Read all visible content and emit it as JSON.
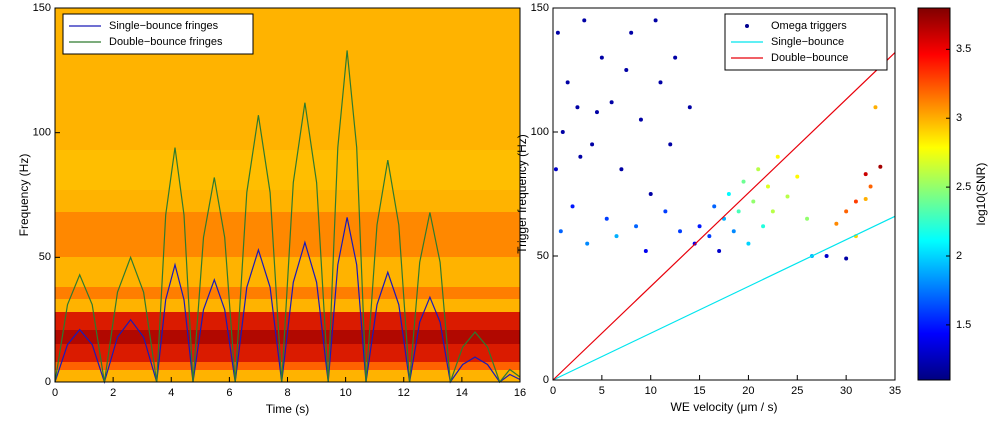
{
  "chart_data": [
    {
      "type": "line",
      "xlabel": "Time (s)",
      "ylabel": "Frequency (Hz)",
      "xlim": [
        0,
        16
      ],
      "xticks": [
        0,
        2,
        4,
        6,
        8,
        10,
        12,
        14,
        16
      ],
      "ylim": [
        0,
        150
      ],
      "yticks": [
        0,
        50,
        100,
        150
      ],
      "legend": "upper left",
      "x": [
        0,
        0.43,
        0.85,
        1.28,
        1.7,
        2.15,
        2.6,
        3.05,
        3.5,
        3.81,
        4.13,
        4.44,
        4.75,
        5.11,
        5.48,
        5.84,
        6.2,
        6.6,
        7.0,
        7.4,
        7.8,
        8.2,
        8.6,
        9.0,
        9.4,
        9.73,
        10.05,
        10.38,
        10.7,
        11.08,
        11.45,
        11.83,
        12.2,
        12.55,
        12.9,
        13.25,
        13.6,
        14.03,
        14.45,
        14.88,
        15.3,
        15.65,
        16
      ],
      "series": [
        {
          "name": "Single−bounce fringes",
          "color": "#1a1ab8",
          "values": [
            0,
            15,
            21,
            15,
            0,
            18,
            25,
            18,
            0,
            33,
            47,
            33,
            0,
            29,
            41,
            29,
            0,
            38,
            53,
            38,
            0,
            40,
            56,
            40,
            0,
            47,
            66,
            47,
            0,
            31,
            44,
            31,
            0,
            24,
            34,
            24,
            0,
            7,
            10,
            7,
            0,
            3,
            1
          ]
        },
        {
          "name": "Double−bounce fringes",
          "color": "#2e7a2e",
          "values": [
            0,
            31,
            43,
            31,
            0,
            36,
            50,
            36,
            0,
            67,
            94,
            67,
            0,
            58,
            82,
            58,
            0,
            76,
            107,
            76,
            0,
            80,
            112,
            80,
            0,
            94,
            133,
            94,
            0,
            63,
            89,
            63,
            0,
            48,
            68,
            48,
            0,
            14,
            20,
            14,
            0,
            5,
            2
          ]
        }
      ]
    },
    {
      "type": "scatter",
      "xlabel": "WE velocity (μm / s)",
      "ylabel": "Trigger frequency (Hz)",
      "xlim": [
        0,
        35
      ],
      "xticks": [
        0,
        5,
        10,
        15,
        20,
        25,
        30,
        35
      ],
      "ylim": [
        0,
        150
      ],
      "yticks": [
        0,
        50,
        100,
        150
      ],
      "legend": "upper right",
      "colorbar": {
        "label": "log10(SNR)",
        "lim": [
          1.1,
          3.8
        ],
        "ticks": [
          1.5,
          2,
          2.5,
          3,
          3.5
        ],
        "colormap": "jet"
      },
      "series": [
        {
          "name": "Omega triggers",
          "color": "#00008f",
          "marker": "dot",
          "x": [
            0.5,
            1.5,
            2.5,
            3.2,
            4,
            5,
            6,
            7,
            8,
            9,
            10,
            11,
            12,
            13,
            0.8,
            2,
            3.5,
            5.5,
            6.5,
            8.5,
            9.5,
            11.5,
            1,
            4.5,
            7.5,
            10.5,
            12.5,
            14,
            0.3,
            2.8,
            14.5,
            15,
            16,
            16.5,
            17,
            17.5,
            18,
            18.5,
            19,
            19.5,
            20,
            20.5,
            21,
            21.5,
            22,
            22.5,
            23,
            24,
            25,
            26,
            26.5,
            28,
            29,
            30,
            30,
            31,
            32,
            32.5,
            33,
            33.5,
            32,
            31
          ],
          "values": [
            140,
            120,
            110,
            145,
            95,
            130,
            112,
            85,
            140,
            105,
            75,
            120,
            95,
            60,
            60,
            70,
            55,
            65,
            58,
            62,
            52,
            68,
            100,
            108,
            125,
            145,
            130,
            110,
            85,
            90,
            55,
            62,
            58,
            70,
            52,
            65,
            75,
            60,
            68,
            80,
            55,
            72,
            85,
            62,
            78,
            68,
            90,
            74,
            82,
            65,
            50,
            50,
            63,
            68,
            49,
            72,
            83,
            78,
            110,
            86,
            73,
            58
          ],
          "color_values": [
            1.2,
            1.2,
            1.2,
            1.2,
            1.2,
            1.2,
            1.2,
            1.2,
            1.2,
            1.2,
            1.2,
            1.2,
            1.2,
            1.6,
            1.7,
            1.5,
            1.8,
            1.6,
            1.9,
            1.7,
            1.4,
            1.6,
            1.2,
            1.2,
            1.2,
            1.2,
            1.2,
            1.2,
            1.3,
            1.2,
            1.4,
            1.5,
            1.6,
            1.7,
            1.3,
            1.9,
            2.1,
            1.8,
            2.3,
            2.4,
            2.0,
            2.5,
            2.6,
            2.2,
            2.7,
            2.6,
            2.8,
            2.6,
            2.8,
            2.5,
            1.9,
            1.3,
            3.1,
            3.2,
            1.2,
            3.3,
            3.6,
            3.2,
            3.0,
            3.7,
            3.0,
            2.9
          ]
        },
        {
          "name": "Single−bounce",
          "color": "#00e5ee",
          "marker": "line",
          "x": [
            0,
            35
          ],
          "values": [
            0,
            66
          ]
        },
        {
          "name": "Double−bounce",
          "color": "#e8000b",
          "marker": "line",
          "x": [
            0,
            35
          ],
          "values": [
            0,
            132
          ]
        }
      ]
    }
  ]
}
